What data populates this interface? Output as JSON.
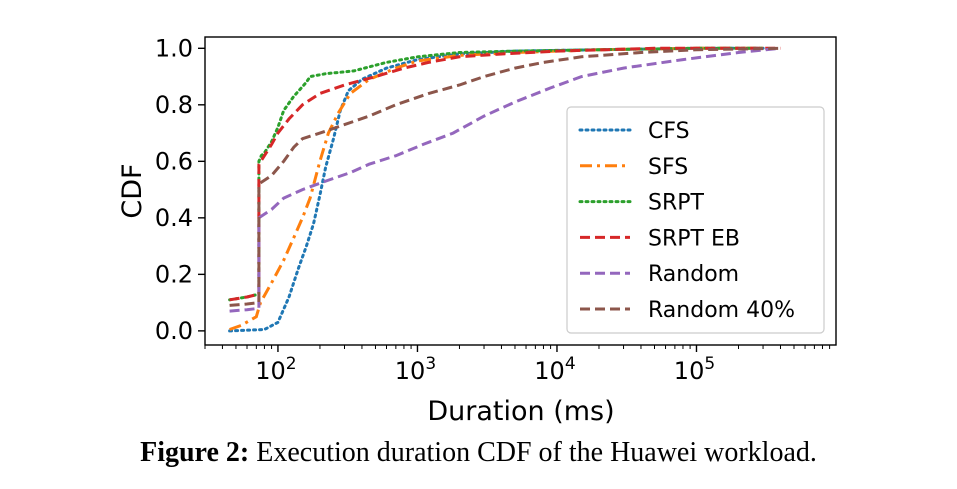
{
  "chart_data": {
    "type": "line",
    "title": "",
    "xlabel": "Duration (ms)",
    "ylabel": "CDF",
    "xscale": "log",
    "xlim": [
      30,
      1000000
    ],
    "ylim": [
      -0.05,
      1.04
    ],
    "x_ticks": [
      {
        "value": 100,
        "base": "10",
        "exp": "2"
      },
      {
        "value": 1000,
        "base": "10",
        "exp": "3"
      },
      {
        "value": 10000,
        "base": "10",
        "exp": "4"
      },
      {
        "value": 100000,
        "base": "10",
        "exp": "5"
      }
    ],
    "y_ticks": [
      {
        "value": 0.0,
        "label": "0.0"
      },
      {
        "value": 0.2,
        "label": "0.2"
      },
      {
        "value": 0.4,
        "label": "0.4"
      },
      {
        "value": 0.6,
        "label": "0.6"
      },
      {
        "value": 0.8,
        "label": "0.8"
      },
      {
        "value": 1.0,
        "label": "1.0"
      }
    ],
    "grid": false,
    "legend_position": "lower-right",
    "series": [
      {
        "name": "CFS",
        "color": "#1f77b4",
        "dash": "dotted",
        "points": [
          [
            45,
            0
          ],
          [
            80,
            0.005
          ],
          [
            100,
            0.03
          ],
          [
            120,
            0.12
          ],
          [
            140,
            0.22
          ],
          [
            160,
            0.3
          ],
          [
            180,
            0.38
          ],
          [
            200,
            0.48
          ],
          [
            220,
            0.58
          ],
          [
            250,
            0.68
          ],
          [
            280,
            0.78
          ],
          [
            320,
            0.85
          ],
          [
            400,
            0.89
          ],
          [
            600,
            0.93
          ],
          [
            1000,
            0.96
          ],
          [
            2000,
            0.98
          ],
          [
            5000,
            0.99
          ],
          [
            20000,
            0.995
          ],
          [
            100000,
            1.0
          ],
          [
            300000,
            1.0
          ]
        ]
      },
      {
        "name": "SFS",
        "color": "#ff7f0e",
        "dash": "dashdot",
        "points": [
          [
            45,
            0.005
          ],
          [
            55,
            0.02
          ],
          [
            70,
            0.05
          ],
          [
            75,
            0.1
          ],
          [
            90,
            0.17
          ],
          [
            110,
            0.25
          ],
          [
            130,
            0.33
          ],
          [
            150,
            0.4
          ],
          [
            170,
            0.47
          ],
          [
            200,
            0.6
          ],
          [
            230,
            0.7
          ],
          [
            270,
            0.77
          ],
          [
            330,
            0.84
          ],
          [
            450,
            0.89
          ],
          [
            700,
            0.93
          ],
          [
            1000,
            0.955
          ],
          [
            2000,
            0.975
          ],
          [
            5000,
            0.985
          ],
          [
            20000,
            0.995
          ],
          [
            100000,
            1.0
          ],
          [
            300000,
            1.0
          ]
        ]
      },
      {
        "name": "SRPT",
        "color": "#2ca02c",
        "dash": "dotted",
        "points": [
          [
            45,
            0.11
          ],
          [
            60,
            0.12
          ],
          [
            73,
            0.13
          ],
          [
            73,
            0.6
          ],
          [
            76,
            0.62
          ],
          [
            80,
            0.63
          ],
          [
            90,
            0.67
          ],
          [
            100,
            0.72
          ],
          [
            110,
            0.78
          ],
          [
            130,
            0.83
          ],
          [
            160,
            0.88
          ],
          [
            170,
            0.9
          ],
          [
            220,
            0.91
          ],
          [
            350,
            0.92
          ],
          [
            600,
            0.95
          ],
          [
            1000,
            0.97
          ],
          [
            2000,
            0.985
          ],
          [
            5000,
            0.99
          ],
          [
            20000,
            0.995
          ],
          [
            100000,
            1.0
          ],
          [
            300000,
            1.0
          ]
        ]
      },
      {
        "name": "SRPT EB",
        "color": "#d62728",
        "dash": "dashed",
        "points": [
          [
            45,
            0.11
          ],
          [
            60,
            0.12
          ],
          [
            73,
            0.13
          ],
          [
            73,
            0.59
          ],
          [
            80,
            0.62
          ],
          [
            90,
            0.66
          ],
          [
            100,
            0.7
          ],
          [
            120,
            0.75
          ],
          [
            150,
            0.8
          ],
          [
            200,
            0.84
          ],
          [
            300,
            0.87
          ],
          [
            500,
            0.9
          ],
          [
            800,
            0.93
          ],
          [
            1200,
            0.95
          ],
          [
            2000,
            0.97
          ],
          [
            4000,
            0.98
          ],
          [
            10000,
            0.99
          ],
          [
            50000,
            1.0
          ],
          [
            400000,
            1.0
          ]
        ]
      },
      {
        "name": "Random",
        "color": "#9467bd",
        "dash": "dashed",
        "points": [
          [
            45,
            0.07
          ],
          [
            60,
            0.075
          ],
          [
            73,
            0.08
          ],
          [
            73,
            0.4
          ],
          [
            90,
            0.43
          ],
          [
            110,
            0.47
          ],
          [
            150,
            0.5
          ],
          [
            220,
            0.53
          ],
          [
            330,
            0.56
          ],
          [
            450,
            0.59
          ],
          [
            700,
            0.62
          ],
          [
            1100,
            0.66
          ],
          [
            1800,
            0.7
          ],
          [
            3000,
            0.76
          ],
          [
            5000,
            0.81
          ],
          [
            9000,
            0.86
          ],
          [
            15000,
            0.9
          ],
          [
            30000,
            0.93
          ],
          [
            80000,
            0.96
          ],
          [
            200000,
            0.985
          ],
          [
            400000,
            1.0
          ]
        ]
      },
      {
        "name": "Random 40%",
        "color": "#8c564b",
        "dash": "dashed",
        "points": [
          [
            45,
            0.09
          ],
          [
            60,
            0.095
          ],
          [
            73,
            0.1
          ],
          [
            73,
            0.52
          ],
          [
            90,
            0.55
          ],
          [
            110,
            0.6
          ],
          [
            130,
            0.65
          ],
          [
            150,
            0.68
          ],
          [
            200,
            0.7
          ],
          [
            300,
            0.73
          ],
          [
            450,
            0.76
          ],
          [
            700,
            0.8
          ],
          [
            1200,
            0.84
          ],
          [
            2000,
            0.87
          ],
          [
            3000,
            0.9
          ],
          [
            5000,
            0.93
          ],
          [
            8000,
            0.95
          ],
          [
            15000,
            0.97
          ],
          [
            40000,
            0.985
          ],
          [
            100000,
            0.995
          ],
          [
            400000,
            1.0
          ]
        ]
      }
    ]
  },
  "caption": {
    "bold": "Figure 2:",
    "text": " Execution duration CDF of the Huawei workload."
  }
}
